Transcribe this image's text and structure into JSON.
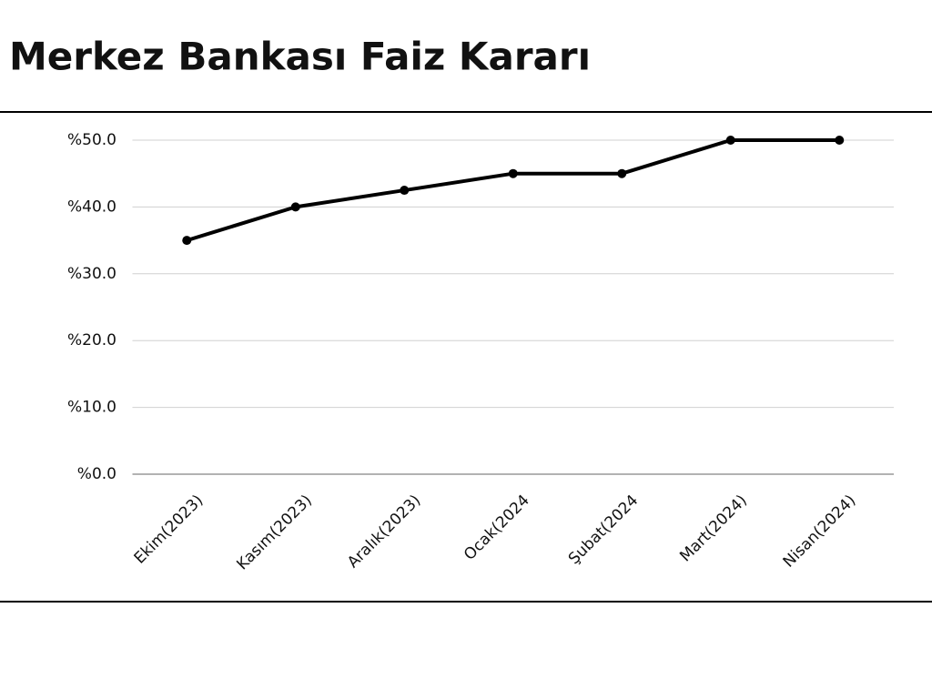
{
  "chart_data": {
    "type": "line",
    "title": "Merkez Bankası Faiz Kararı",
    "categories": [
      "Ekim(2023)",
      "Kasım(2023)",
      "Aralık(2023)",
      "Ocak(2024",
      "Şubat(2024",
      "Mart(2024)",
      "Nisan(2024)"
    ],
    "values": [
      35,
      40,
      42.5,
      45,
      45,
      50,
      50
    ],
    "color": "#000000",
    "ylim": [
      0,
      50
    ],
    "yticks": [
      {
        "value": 0,
        "label": "%0.0"
      },
      {
        "value": 10,
        "label": "%10.0"
      },
      {
        "value": 20,
        "label": "%20.0"
      },
      {
        "value": 30,
        "label": "%30.0"
      },
      {
        "value": 40,
        "label": "%40.0"
      },
      {
        "value": 50,
        "label": "%50.0"
      }
    ],
    "grid": true
  }
}
